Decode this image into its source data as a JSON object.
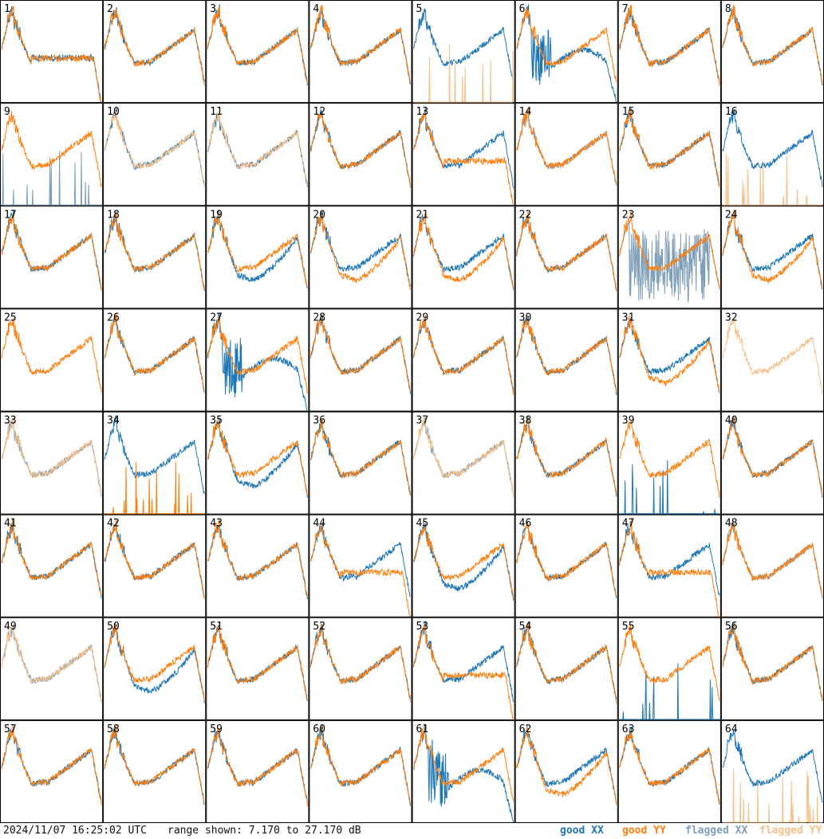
{
  "footer": {
    "timestamp": "2024/11/07 16:25:02 UTC",
    "range_text": "range shown: 7.170 to 27.170 dB"
  },
  "legend": [
    {
      "label": "good",
      "pol": "XX",
      "color": "#1f77b4"
    },
    {
      "label": "good",
      "pol": "YY",
      "color": "#ff7f0e"
    },
    {
      "label": "flagged",
      "pol": "XX",
      "color": "#7f9fb8"
    },
    {
      "label": "flagged",
      "pol": "YY",
      "color": "#f7c08a"
    }
  ],
  "chart_data": {
    "type": "line",
    "layout": "8x8 small multiples, one bandpass spectrum per antenna",
    "y_range_db": [
      7.17,
      27.17
    ],
    "series_names": [
      "good XX",
      "good YY",
      "flagged XX",
      "flagged YY"
    ],
    "panels": [
      {
        "label": "1",
        "xx": "special-drop",
        "yy": "special-drop"
      },
      {
        "label": "2",
        "xx": "good",
        "yy": "good"
      },
      {
        "label": "3",
        "xx": "good",
        "yy": "good"
      },
      {
        "label": "4",
        "xx": "good",
        "yy": "good"
      },
      {
        "label": "5",
        "xx": "good",
        "yy": "flagged-spikes"
      },
      {
        "label": "6",
        "xx": "special-dip",
        "yy": "good"
      },
      {
        "label": "7",
        "xx": "good",
        "yy": "good"
      },
      {
        "label": "8",
        "xx": "good",
        "yy": "good"
      },
      {
        "label": "9",
        "xx": "flagged-spikes",
        "yy": "good"
      },
      {
        "label": "10",
        "xx": "good",
        "yy": "flagged"
      },
      {
        "label": "11",
        "xx": "good",
        "yy": "flagged"
      },
      {
        "label": "12",
        "xx": "good",
        "yy": "good"
      },
      {
        "label": "13",
        "xx": "good",
        "yy": "special-drop"
      },
      {
        "label": "14",
        "xx": "flagged",
        "yy": "good"
      },
      {
        "label": "15",
        "xx": "good",
        "yy": "good"
      },
      {
        "label": "16",
        "xx": "good",
        "yy": "flagged-spikes"
      },
      {
        "label": "17",
        "xx": "good",
        "yy": "good"
      },
      {
        "label": "18",
        "xx": "good",
        "yy": "good"
      },
      {
        "label": "19",
        "xx": "good-low",
        "yy": "good"
      },
      {
        "label": "20",
        "xx": "good",
        "yy": "good-low"
      },
      {
        "label": "21",
        "xx": "good",
        "yy": "good-low"
      },
      {
        "label": "22",
        "xx": "good",
        "yy": "good"
      },
      {
        "label": "23",
        "xx": "flagged-noise",
        "yy": "good"
      },
      {
        "label": "24",
        "xx": "good",
        "yy": "good-low"
      },
      {
        "label": "25",
        "xx": "none",
        "yy": "good"
      },
      {
        "label": "26",
        "xx": "good",
        "yy": "good"
      },
      {
        "label": "27",
        "xx": "special-dip",
        "yy": "good"
      },
      {
        "label": "28",
        "xx": "good",
        "yy": "good"
      },
      {
        "label": "29",
        "xx": "good",
        "yy": "good"
      },
      {
        "label": "30",
        "xx": "good",
        "yy": "good"
      },
      {
        "label": "31",
        "xx": "good",
        "yy": "good-low"
      },
      {
        "label": "32",
        "xx": "none",
        "yy": "flagged"
      },
      {
        "label": "33",
        "xx": "flagged",
        "yy": "flagged"
      },
      {
        "label": "34",
        "xx": "good",
        "yy": "good-spikes"
      },
      {
        "label": "35",
        "xx": "good-low",
        "yy": "good"
      },
      {
        "label": "36",
        "xx": "good",
        "yy": "good"
      },
      {
        "label": "37",
        "xx": "flagged",
        "yy": "flagged"
      },
      {
        "label": "38",
        "xx": "good",
        "yy": "good"
      },
      {
        "label": "39",
        "xx": "good-spikes",
        "yy": "good"
      },
      {
        "label": "40",
        "xx": "good",
        "yy": "good"
      },
      {
        "label": "41",
        "xx": "good",
        "yy": "good"
      },
      {
        "label": "42",
        "xx": "good",
        "yy": "good"
      },
      {
        "label": "43",
        "xx": "good",
        "yy": "good"
      },
      {
        "label": "44",
        "xx": "good",
        "yy": "special-drop"
      },
      {
        "label": "45",
        "xx": "good-low",
        "yy": "good"
      },
      {
        "label": "46",
        "xx": "good",
        "yy": "good"
      },
      {
        "label": "47",
        "xx": "good",
        "yy": "special-drop"
      },
      {
        "label": "48",
        "xx": "flagged",
        "yy": "good"
      },
      {
        "label": "49",
        "xx": "flagged",
        "yy": "flagged"
      },
      {
        "label": "50",
        "xx": "good-low",
        "yy": "good"
      },
      {
        "label": "51",
        "xx": "good",
        "yy": "good"
      },
      {
        "label": "52",
        "xx": "good",
        "yy": "good"
      },
      {
        "label": "53",
        "xx": "good",
        "yy": "special-drop"
      },
      {
        "label": "54",
        "xx": "good",
        "yy": "good"
      },
      {
        "label": "55",
        "xx": "good-spikes",
        "yy": "good"
      },
      {
        "label": "56",
        "xx": "good",
        "yy": "good"
      },
      {
        "label": "57",
        "xx": "good",
        "yy": "good"
      },
      {
        "label": "58",
        "xx": "good",
        "yy": "good"
      },
      {
        "label": "59",
        "xx": "good",
        "yy": "good"
      },
      {
        "label": "60",
        "xx": "good",
        "yy": "good"
      },
      {
        "label": "61",
        "xx": "special-dip",
        "yy": "good"
      },
      {
        "label": "62",
        "xx": "good",
        "yy": "good-low"
      },
      {
        "label": "63",
        "xx": "good",
        "yy": "good"
      },
      {
        "label": "64",
        "xx": "good",
        "yy": "flagged-spikes"
      }
    ]
  }
}
